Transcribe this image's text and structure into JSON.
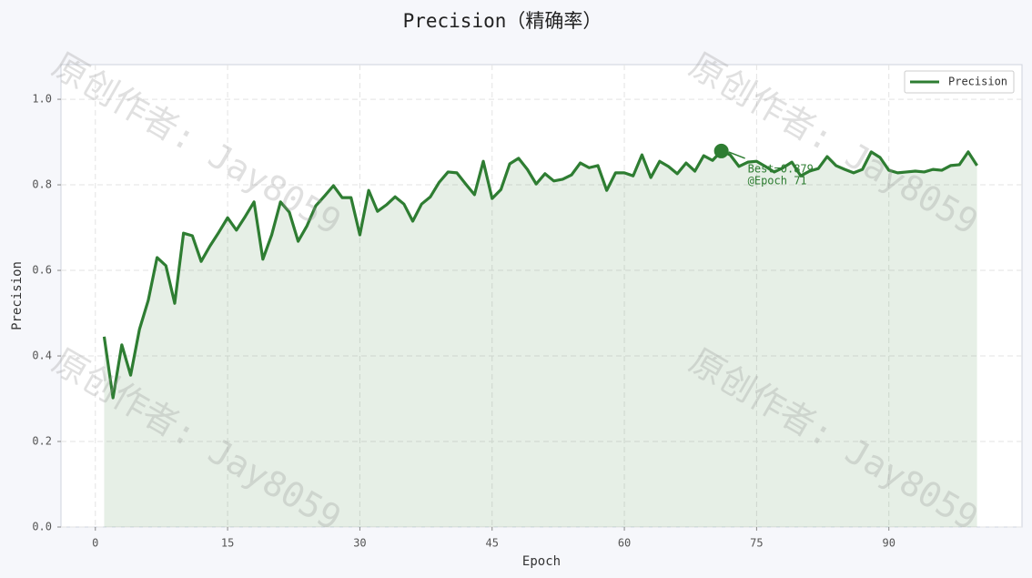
{
  "chart_data": {
    "type": "line",
    "title": "Precision（精确率）",
    "xlabel": "Epoch",
    "ylabel": "Precision",
    "x": [
      1,
      2,
      3,
      4,
      5,
      6,
      7,
      8,
      9,
      10,
      11,
      12,
      13,
      14,
      15,
      16,
      17,
      18,
      19,
      20,
      21,
      22,
      23,
      24,
      25,
      26,
      27,
      28,
      29,
      30,
      31,
      32,
      33,
      34,
      35,
      36,
      37,
      38,
      39,
      40,
      41,
      42,
      43,
      44,
      45,
      46,
      47,
      48,
      49,
      50,
      51,
      52,
      53,
      54,
      55,
      56,
      57,
      58,
      59,
      60,
      61,
      62,
      63,
      64,
      65,
      66,
      67,
      68,
      69,
      70,
      71,
      72,
      73,
      74,
      75,
      76,
      77,
      78,
      79,
      80,
      81,
      82,
      83,
      84,
      85,
      86,
      87,
      88,
      89,
      90,
      91,
      92,
      93,
      94,
      95,
      96,
      97,
      98,
      99,
      100
    ],
    "series": [
      {
        "name": "Precision",
        "color": "#2e7d32",
        "values": [
          0.445,
          0.302,
          0.426,
          0.355,
          0.462,
          0.53,
          0.63,
          0.611,
          0.523,
          0.687,
          0.681,
          0.621,
          0.657,
          0.689,
          0.723,
          0.694,
          0.726,
          0.76,
          0.626,
          0.683,
          0.76,
          0.736,
          0.668,
          0.704,
          0.751,
          0.774,
          0.798,
          0.77,
          0.77,
          0.683,
          0.787,
          0.738,
          0.753,
          0.772,
          0.755,
          0.715,
          0.755,
          0.772,
          0.806,
          0.83,
          0.828,
          0.802,
          0.777,
          0.855,
          0.768,
          0.789,
          0.849,
          0.862,
          0.836,
          0.802,
          0.826,
          0.809,
          0.813,
          0.823,
          0.851,
          0.84,
          0.845,
          0.787,
          0.828,
          0.828,
          0.821,
          0.87,
          0.817,
          0.855,
          0.843,
          0.826,
          0.851,
          0.832,
          0.868,
          0.857,
          0.879,
          0.87,
          0.843,
          0.853,
          0.855,
          0.843,
          0.83,
          0.84,
          0.853,
          0.821,
          0.832,
          0.838,
          0.866,
          0.845,
          0.836,
          0.828,
          0.836,
          0.877,
          0.864,
          0.834,
          0.828,
          0.83,
          0.832,
          0.83,
          0.836,
          0.834,
          0.845,
          0.847,
          0.877,
          0.845
        ]
      }
    ],
    "xlim": [
      -3.9,
      105.1
    ],
    "xticks": [
      0,
      15,
      30,
      45,
      60,
      75,
      90
    ],
    "ylim": [
      0,
      1.081
    ],
    "yticks": [
      {
        "value": 0,
        "label": "0.0"
      },
      {
        "value": 0.2,
        "label": "0.2"
      },
      {
        "value": 0.4,
        "label": "0.4"
      },
      {
        "value": 0.6,
        "label": "0.6"
      },
      {
        "value": 0.8,
        "label": "0.8"
      },
      {
        "value": 1,
        "label": "1.0"
      }
    ],
    "grid": true,
    "legend": "upper right",
    "fill_area": true,
    "annotation": {
      "x": 71,
      "y": 0.879,
      "lines": [
        "Best=0.879",
        "@Epoch 71"
      ]
    },
    "watermarks": [
      "原创作者: Jay8059",
      "原创作者: Jay8059",
      "原创作者: Jay8059",
      "原创作者: Jay8059"
    ]
  }
}
